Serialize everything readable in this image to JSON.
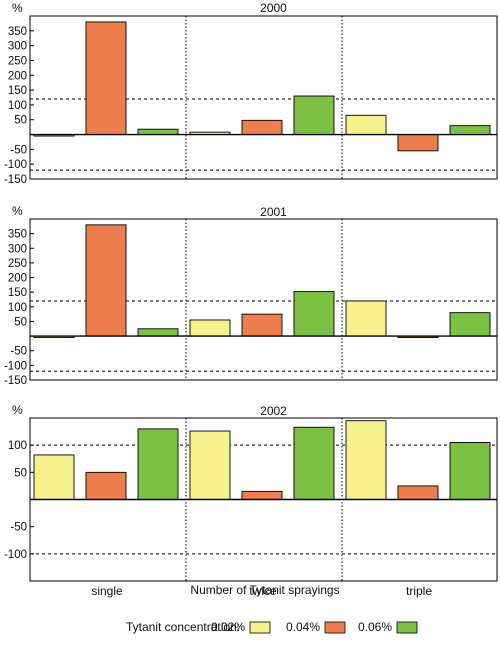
{
  "figure": {
    "categories": [
      "single",
      "twice",
      "triple"
    ],
    "y_unit": "%",
    "xlabel": "Number of Tytanit sprayings",
    "legend": {
      "prefix": "Tytanit concentration:",
      "items": [
        {
          "label": "0.02%",
          "color": "#f7f28e"
        },
        {
          "label": "0.04%",
          "color": "#ee7f4c"
        },
        {
          "label": "0.06%",
          "color": "#7cc143"
        }
      ]
    }
  },
  "chart_data": [
    {
      "type": "bar",
      "title": "2000",
      "categories": [
        "single",
        "twice",
        "triple"
      ],
      "series": [
        {
          "name": "0.02%",
          "values": [
            -5,
            8,
            65
          ]
        },
        {
          "name": "0.04%",
          "values": [
            380,
            48,
            -55
          ]
        },
        {
          "name": "0.06%",
          "values": [
            18,
            130,
            30
          ]
        }
      ],
      "ylim": [
        -150,
        400
      ],
      "yticks": [
        -150,
        -100,
        -50,
        50,
        100,
        150,
        200,
        250,
        300,
        350
      ],
      "reference_lines": [
        120,
        -120
      ]
    },
    {
      "type": "bar",
      "title": "2001",
      "categories": [
        "single",
        "twice",
        "triple"
      ],
      "series": [
        {
          "name": "0.02%",
          "values": [
            -5,
            55,
            120
          ]
        },
        {
          "name": "0.04%",
          "values": [
            380,
            75,
            -3
          ]
        },
        {
          "name": "0.06%",
          "values": [
            25,
            152,
            80
          ]
        }
      ],
      "ylim": [
        -150,
        400
      ],
      "yticks": [
        -150,
        -100,
        -50,
        50,
        100,
        150,
        200,
        250,
        300,
        350
      ],
      "reference_lines": [
        120,
        -120
      ]
    },
    {
      "type": "bar",
      "title": "2002",
      "categories": [
        "single",
        "twice",
        "triple"
      ],
      "series": [
        {
          "name": "0.02%",
          "values": [
            82,
            126,
            145
          ]
        },
        {
          "name": "0.04%",
          "values": [
            50,
            15,
            25
          ]
        },
        {
          "name": "0.06%",
          "values": [
            130,
            133,
            105
          ]
        }
      ],
      "ylim": [
        -150,
        150
      ],
      "yticks": [
        -100,
        -50,
        50,
        100
      ],
      "reference_lines": [
        100,
        -100
      ]
    }
  ]
}
